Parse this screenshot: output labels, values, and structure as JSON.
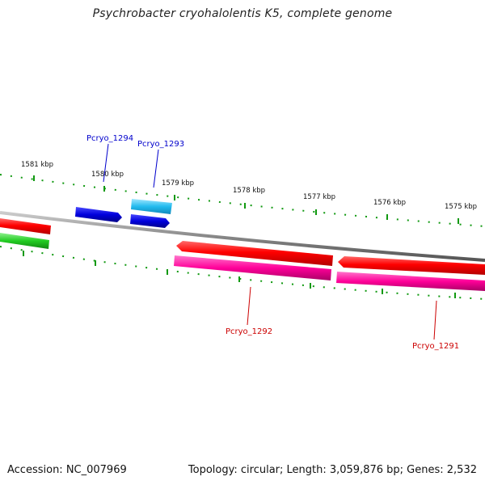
{
  "title": "Psychrobacter cryohalolentis K5, complete genome",
  "footer": {
    "accession": "Accession: NC_007969",
    "summary": "Topology: circular; Length: 3,059,876 bp; Genes: 2,532"
  },
  "ticks": [
    {
      "label": "1581 kbp"
    },
    {
      "label": "1580 kbp"
    },
    {
      "label": "1579 kbp"
    },
    {
      "label": "1578 kbp"
    },
    {
      "label": "1577 kbp"
    },
    {
      "label": "1576 kbp"
    },
    {
      "label": "1575 kbp"
    }
  ],
  "genes": [
    {
      "name": "Pcryo_1294",
      "strand": "forward",
      "color": "#0000dd"
    },
    {
      "name": "Pcryo_1293",
      "strand": "forward",
      "color": "#22bbee"
    },
    {
      "name": "Pcryo_1292",
      "strand": "reverse",
      "color": "#ff0099"
    },
    {
      "name": "Pcryo_1291",
      "strand": "reverse",
      "color": "#ff0099"
    }
  ],
  "colors": {
    "forward_label": "#0000cc",
    "reverse_label": "#cc0000",
    "backbone": "#888888",
    "tick_marks": "#119911",
    "red_feature": "#ff0000",
    "green_feature": "#22cc22",
    "blue_feature": "#0000dd",
    "cyan_feature": "#22bbee",
    "pink_feature": "#ff0099"
  }
}
